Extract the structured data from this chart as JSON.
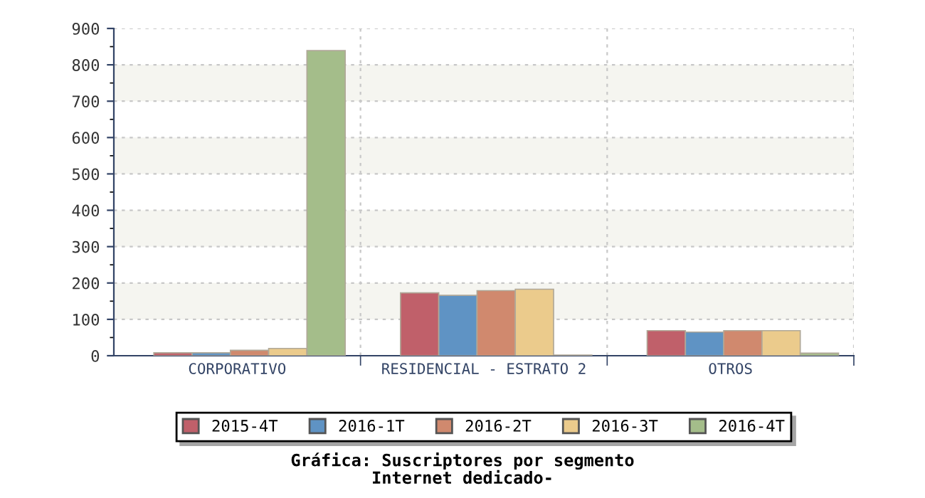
{
  "chart_data": {
    "type": "bar",
    "title": "Gráfica: Suscriptores por segmento\nInternet dedicado-",
    "categories": [
      "CORPORATIVO",
      "RESIDENCIAL - ESTRATO 2",
      "OTROS"
    ],
    "series": [
      {
        "name": "2015-4T",
        "color": "#c0606a",
        "values": [
          8,
          173,
          69
        ]
      },
      {
        "name": "2016-1T",
        "color": "#5f93c4",
        "values": [
          8,
          166,
          65
        ]
      },
      {
        "name": "2016-2T",
        "color": "#d0896e",
        "values": [
          15,
          179,
          69
        ]
      },
      {
        "name": "2016-3T",
        "color": "#ebcb8c",
        "values": [
          20,
          183,
          69
        ]
      },
      {
        "name": "2016-4T",
        "color": "#a4bd8a",
        "values": [
          839,
          2,
          7
        ]
      }
    ],
    "ylim": [
      0,
      900
    ],
    "yticks": [
      0,
      100,
      200,
      300,
      400,
      500,
      600,
      700,
      800,
      900
    ],
    "grid": true,
    "legend": "bottom"
  }
}
